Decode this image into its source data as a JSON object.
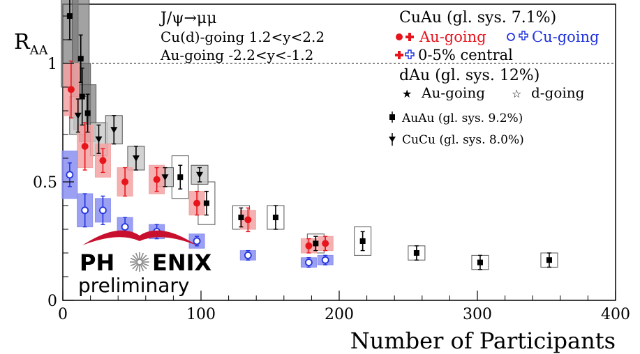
{
  "chart_data": {
    "type": "scatter",
    "title": "",
    "xlabel": "Number of Participants",
    "ylabel": "R_AA",
    "xlim": [
      0,
      400
    ],
    "ylim": [
      0,
      1.25
    ],
    "x_ticks": [
      "0",
      "100",
      "200",
      "300",
      "400"
    ],
    "y_ticks": [
      "0",
      "0.5",
      "1"
    ],
    "reference_line": 1,
    "annotations": {
      "process": "J/ψ→μμ",
      "cu_going_range": "Cu(d)-going 1.2<y<2.2",
      "au_going_range": "Au-going -2.2<y<-1.2"
    },
    "legend": {
      "cuau_header": "CuAu (gl. sys. 7.1%)",
      "au_going": "Au-going",
      "cu_going": "Cu-going",
      "central": "0-5% central",
      "dau_header": "dAu (gl. sys. 12%)",
      "dau_au_going": "Au-going",
      "dau_d_going": "d-going",
      "auau": "AuAu (gl. sys. 9.2%)",
      "cucu": "CuCu (gl. sys. 8.0%)"
    },
    "series": [
      {
        "name": "CuAu Au-going",
        "color": "#e8141c",
        "box_color": "#f3a3a3",
        "marker": "circle",
        "points": [
          {
            "x": 6,
            "y": 0.89,
            "e": 0.12,
            "s": 0.11
          },
          {
            "x": 16,
            "y": 0.65,
            "e": 0.1,
            "s": 0.09
          },
          {
            "x": 29,
            "y": 0.59,
            "e": 0.05,
            "s": 0.07
          },
          {
            "x": 45,
            "y": 0.5,
            "e": 0.06,
            "s": 0.06
          },
          {
            "x": 68,
            "y": 0.51,
            "e": 0.05,
            "s": 0.06
          },
          {
            "x": 97,
            "y": 0.41,
            "e": 0.05,
            "s": 0.05
          },
          {
            "x": 134,
            "y": 0.34,
            "e": 0.05,
            "s": 0.04
          },
          {
            "x": 178,
            "y": 0.23,
            "e": 0.03,
            "s": 0.03
          },
          {
            "x": 190,
            "y": 0.24,
            "e": 0.03,
            "s": 0.03
          }
        ]
      },
      {
        "name": "CuAu Cu-going",
        "color": "#2233dd",
        "box_color": "#8a8ff0",
        "marker": "open-circle",
        "points": [
          {
            "x": 5,
            "y": 0.53,
            "e": 0.05,
            "s": 0.1
          },
          {
            "x": 16,
            "y": 0.38,
            "e": 0.07,
            "s": 0.07
          },
          {
            "x": 29,
            "y": 0.38,
            "e": 0.06,
            "s": 0.05
          },
          {
            "x": 45,
            "y": 0.31,
            "e": 0.04,
            "s": 0.04
          },
          {
            "x": 68,
            "y": 0.29,
            "e": 0.03,
            "s": 0.03
          },
          {
            "x": 97,
            "y": 0.25,
            "e": 0.02,
            "s": 0.03
          },
          {
            "x": 134,
            "y": 0.19,
            "e": 0.02,
            "s": 0.02
          },
          {
            "x": 178,
            "y": 0.16,
            "e": 0.02,
            "s": 0.02
          },
          {
            "x": 190,
            "y": 0.17,
            "e": 0.02,
            "s": 0.02
          }
        ]
      },
      {
        "name": "AuAu",
        "color": "#000000",
        "box_color": "#888888",
        "marker": "square",
        "points": [
          {
            "x": 5,
            "y": 1.2,
            "e": 0.1,
            "s": 0.3
          },
          {
            "x": 13,
            "y": 1.02,
            "e": 0.1,
            "s": 0.25
          },
          {
            "x": 14,
            "y": 0.86,
            "e": 0.12,
            "s": 0.14
          },
          {
            "x": 18,
            "y": 0.79,
            "e": 0.08,
            "s": 0.12
          },
          {
            "x": 85,
            "y": 0.52,
            "e": 0.05,
            "s": 0.09
          },
          {
            "x": 104,
            "y": 0.41,
            "e": 0.05,
            "s": 0.09
          },
          {
            "x": 129,
            "y": 0.35,
            "e": 0.04,
            "s": 0.05
          },
          {
            "x": 154,
            "y": 0.35,
            "e": 0.05,
            "s": 0.05
          },
          {
            "x": 183,
            "y": 0.24,
            "e": 0.03,
            "s": 0.04
          },
          {
            "x": 217,
            "y": 0.25,
            "e": 0.04,
            "s": 0.06
          },
          {
            "x": 256,
            "y": 0.2,
            "e": 0.03,
            "s": 0.03
          },
          {
            "x": 302,
            "y": 0.16,
            "e": 0.03,
            "s": 0.03
          },
          {
            "x": 352,
            "y": 0.17,
            "e": 0.03,
            "s": 0.03
          }
        ]
      },
      {
        "name": "CuCu",
        "color": "#000000",
        "box_color": "#bdbdbd",
        "marker": "triangle-down",
        "points": [
          {
            "x": 11,
            "y": 0.78,
            "e": 0.07,
            "s": 0.08
          },
          {
            "x": 26,
            "y": 0.68,
            "e": 0.06,
            "s": 0.07
          },
          {
            "x": 37,
            "y": 0.72,
            "e": 0.06,
            "s": 0.06
          },
          {
            "x": 53,
            "y": 0.6,
            "e": 0.05,
            "s": 0.05
          },
          {
            "x": 74,
            "y": 0.52,
            "e": 0.04,
            "s": 0.04
          },
          {
            "x": 99,
            "y": 0.53,
            "e": 0.03,
            "s": 0.04
          }
        ]
      }
    ]
  },
  "logo": {
    "text_left": "PH",
    "text_right": "ENIX",
    "subtitle": "preliminary"
  },
  "colors": {
    "au_red": "#e8141c",
    "cu_blue": "#2233dd",
    "black": "#000000"
  }
}
